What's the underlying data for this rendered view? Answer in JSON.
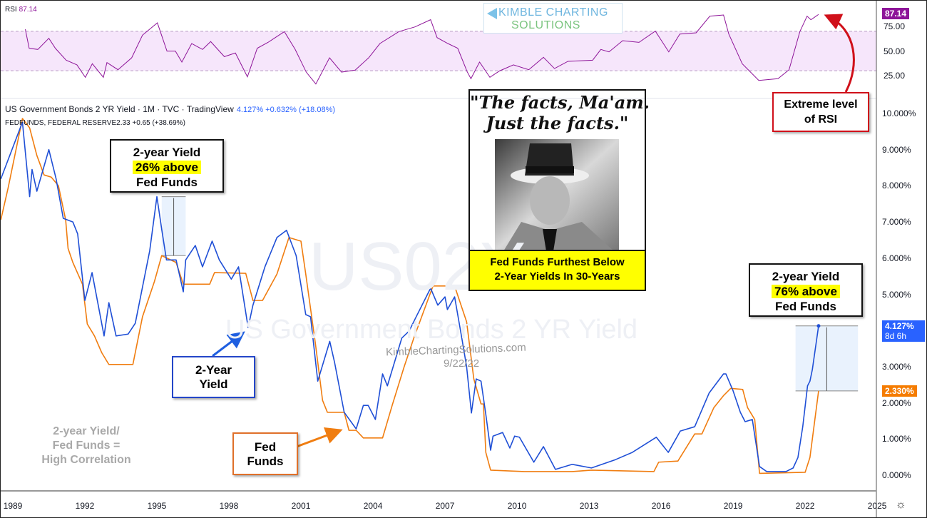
{
  "header": {
    "series1_title": "US Government Bonds 2 YR Yield · 1M · TVC · TradingView",
    "series1_values": "4.127% +0.632% (+18.08%)",
    "series2_title": "FEDFUNDS, FEDERAL RESERVE",
    "series2_values": "2.33 +0.65 (+38.69%)",
    "rsi_label": "RSI",
    "rsi_value": "87.14"
  },
  "logo": {
    "line1": "KIMBLE CHARTING",
    "line2": "SOLUTIONS"
  },
  "watermarks": {
    "symbol": "US02Y",
    "name": "US Government Bonds 2 YR Yield",
    "site": "KimbleChartingSolutions.com",
    "date": "9/22/22"
  },
  "annotations": {
    "box_1995": {
      "line1": "2-year Yield",
      "line2": "26% above",
      "line3": "Fed Funds"
    },
    "box_2022": {
      "line1": "2-year Yield",
      "line2": "76% above",
      "line3": "Fed Funds"
    },
    "two_year_label": {
      "line1": "2-Year",
      "line2": "Yield"
    },
    "fed_funds_label": {
      "line1": "Fed",
      "line2": "Funds"
    },
    "correlation": {
      "line1": "2-year Yield/",
      "line2": "Fed Funds =",
      "line3": "High Correlation"
    },
    "rsi_note": {
      "line1": "Extreme level",
      "line2": "of RSI"
    },
    "quote": {
      "line1": "\"The facts, Ma'am.",
      "line2": "Just the facts.\""
    },
    "caption": {
      "line1": "Fed Funds Furthest Below",
      "line2": "2-Year Yields In 30-Years"
    }
  },
  "badges": {
    "yield_value": "4.127%",
    "yield_countdown": "8d 6h",
    "fed_value": "2.330%",
    "rsi_value": "87.14"
  },
  "colors": {
    "yield": "#1f4fd6",
    "fed_funds": "#f07d10",
    "rsi": "#8e1599",
    "rsi_band": "#f6e6fb",
    "annotation_red": "#d0101a",
    "highlight": "#ffff00"
  },
  "chart_data": [
    {
      "type": "line",
      "title": "RSI",
      "ylim": [
        10,
        95
      ],
      "y_ticks": [
        "75.00",
        "50.00",
        "25.00"
      ],
      "bands": [
        30,
        70
      ],
      "series": [
        {
          "name": "RSI",
          "points": [
            [
              1989.52,
              72.1
            ],
            [
              1989.68,
              52.8
            ],
            [
              1990.04,
              51.6
            ],
            [
              1990.5,
              62.9
            ],
            [
              1990.77,
              52.8
            ],
            [
              1991.22,
              40.7
            ],
            [
              1991.67,
              35.9
            ],
            [
              1992.02,
              23.3
            ],
            [
              1992.31,
              37.1
            ],
            [
              1992.77,
              23.3
            ],
            [
              1992.92,
              38.3
            ],
            [
              1993.38,
              31.0
            ],
            [
              1993.95,
              43.1
            ],
            [
              1994.4,
              66.1
            ],
            [
              1995.02,
              78.6
            ],
            [
              1995.42,
              49.9
            ],
            [
              1995.77,
              49.9
            ],
            [
              1996.04,
              38.8
            ],
            [
              1996.45,
              57.6
            ],
            [
              1996.9,
              51.6
            ],
            [
              1997.24,
              59.6
            ],
            [
              1997.81,
              44.3
            ],
            [
              1998.27,
              48.0
            ],
            [
              1998.77,
              23.8
            ],
            [
              1999.18,
              52.8
            ],
            [
              1999.63,
              58.8
            ],
            [
              2000.31,
              69.7
            ],
            [
              2000.76,
              51.6
            ],
            [
              2001.22,
              28.6
            ],
            [
              2001.62,
              16.5
            ],
            [
              2002.19,
              43.1
            ],
            [
              2002.69,
              28.6
            ],
            [
              2003.26,
              30.6
            ],
            [
              2003.82,
              43.1
            ],
            [
              2004.29,
              57.6
            ],
            [
              2005.08,
              69.7
            ],
            [
              2005.75,
              74.5
            ],
            [
              2006.4,
              81.8
            ],
            [
              2006.67,
              63.6
            ],
            [
              2007.12,
              57.6
            ],
            [
              2007.53,
              52.8
            ],
            [
              2007.92,
              29.1
            ],
            [
              2008.08,
              21.9
            ],
            [
              2008.44,
              38.8
            ],
            [
              2008.87,
              23.3
            ],
            [
              2009.28,
              29.9
            ],
            [
              2009.85,
              35.9
            ],
            [
              2010.49,
              31.0
            ],
            [
              2011.1,
              43.6
            ],
            [
              2011.56,
              32.2
            ],
            [
              2012.12,
              39.5
            ],
            [
              2013.15,
              40.7
            ],
            [
              2013.49,
              51.6
            ],
            [
              2013.83,
              49.1
            ],
            [
              2014.4,
              60.5
            ],
            [
              2015.08,
              58.8
            ],
            [
              2015.76,
              70.2
            ],
            [
              2016.32,
              49.1
            ],
            [
              2016.78,
              67.2
            ],
            [
              2017.46,
              68.5
            ],
            [
              2018.03,
              85.4
            ],
            [
              2018.6,
              86.6
            ],
            [
              2018.82,
              67.2
            ],
            [
              2019.38,
              37.1
            ],
            [
              2020.07,
              20.1
            ],
            [
              2020.87,
              21.9
            ],
            [
              2021.33,
              31.0
            ],
            [
              2021.78,
              69.7
            ],
            [
              2022.08,
              85.4
            ],
            [
              2022.24,
              81.8
            ],
            [
              2022.56,
              87.14
            ]
          ]
        }
      ]
    },
    {
      "type": "line",
      "xlim": [
        1988.5,
        2025.3
      ],
      "ylim": [
        -0.3,
        10.5
      ],
      "x_ticks": [
        "1989",
        "1992",
        "1995",
        "1998",
        "2001",
        "2004",
        "2007",
        "2010",
        "2013",
        "2016",
        "2019",
        "2022",
        "2025"
      ],
      "y_ticks": [
        "10.000%",
        "9.000%",
        "8.000%",
        "7.000%",
        "6.000%",
        "5.000%",
        "3.000%",
        "2.000%",
        "1.000%",
        "0.000%"
      ],
      "series": [
        {
          "name": "US Government Bonds 2 YR Yield",
          "points": [
            [
              1988.5,
              8.19
            ],
            [
              1989.4,
              9.76
            ],
            [
              1989.7,
              7.7
            ],
            [
              1989.8,
              8.45
            ],
            [
              1990.0,
              7.85
            ],
            [
              1990.5,
              9.0
            ],
            [
              1990.8,
              8.2
            ],
            [
              1991.1,
              7.1
            ],
            [
              1991.5,
              7.0
            ],
            [
              1991.7,
              6.67
            ],
            [
              1992.0,
              4.83
            ],
            [
              1992.3,
              5.6
            ],
            [
              1992.8,
              3.85
            ],
            [
              1993.0,
              4.77
            ],
            [
              1993.3,
              3.85
            ],
            [
              1993.8,
              3.9
            ],
            [
              1994.1,
              4.2
            ],
            [
              1994.7,
              6.2
            ],
            [
              1995.0,
              7.7
            ],
            [
              1995.2,
              6.8
            ],
            [
              1995.4,
              5.95
            ],
            [
              1995.8,
              5.95
            ],
            [
              1996.1,
              5.07
            ],
            [
              1996.2,
              5.95
            ],
            [
              1996.6,
              6.35
            ],
            [
              1996.9,
              5.76
            ],
            [
              1997.3,
              6.47
            ],
            [
              1997.6,
              5.95
            ],
            [
              1998.1,
              5.42
            ],
            [
              1998.4,
              5.76
            ],
            [
              1998.8,
              4.08
            ],
            [
              1999.0,
              4.7
            ],
            [
              1999.5,
              5.76
            ],
            [
              2000.0,
              6.57
            ],
            [
              2000.4,
              6.77
            ],
            [
              2000.8,
              6.07
            ],
            [
              2001.2,
              4.44
            ],
            [
              2001.4,
              4.38
            ],
            [
              2001.7,
              2.6
            ],
            [
              2002.2,
              3.7
            ],
            [
              2002.4,
              3.12
            ],
            [
              2002.8,
              1.74
            ],
            [
              2003.3,
              1.28
            ],
            [
              2003.6,
              1.93
            ],
            [
              2003.8,
              1.93
            ],
            [
              2004.1,
              1.54
            ],
            [
              2004.4,
              2.8
            ],
            [
              2004.6,
              2.47
            ],
            [
              2005.2,
              3.79
            ],
            [
              2005.5,
              3.98
            ],
            [
              2005.8,
              4.38
            ],
            [
              2006.4,
              5.17
            ],
            [
              2006.7,
              4.7
            ],
            [
              2007.0,
              4.93
            ],
            [
              2007.1,
              4.58
            ],
            [
              2007.4,
              4.93
            ],
            [
              2007.7,
              3.79
            ],
            [
              2007.9,
              3.0
            ],
            [
              2008.1,
              1.72
            ],
            [
              2008.3,
              2.66
            ],
            [
              2008.5,
              2.6
            ],
            [
              2008.7,
              1.68
            ],
            [
              2008.9,
              0.69
            ],
            [
              2009.0,
              1.08
            ],
            [
              2009.4,
              1.18
            ],
            [
              2009.7,
              0.75
            ],
            [
              2009.9,
              1.08
            ],
            [
              2010.1,
              1.05
            ],
            [
              2010.7,
              0.36
            ],
            [
              2011.1,
              0.79
            ],
            [
              2011.6,
              0.16
            ],
            [
              2012.3,
              0.3
            ],
            [
              2013.1,
              0.2
            ],
            [
              2014.1,
              0.43
            ],
            [
              2014.8,
              0.63
            ],
            [
              2015.8,
              1.05
            ],
            [
              2016.3,
              0.63
            ],
            [
              2016.8,
              1.22
            ],
            [
              2017.4,
              1.34
            ],
            [
              2018.0,
              2.27
            ],
            [
              2018.6,
              2.8
            ],
            [
              2018.7,
              2.8
            ],
            [
              2019.0,
              2.33
            ],
            [
              2019.3,
              1.74
            ],
            [
              2019.5,
              1.48
            ],
            [
              2019.8,
              1.54
            ],
            [
              2020.1,
              0.24
            ],
            [
              2020.4,
              0.1
            ],
            [
              2021.2,
              0.1
            ],
            [
              2021.5,
              0.2
            ],
            [
              2021.7,
              0.49
            ],
            [
              2021.9,
              1.34
            ],
            [
              2022.1,
              2.47
            ],
            [
              2022.2,
              2.6
            ],
            [
              2022.3,
              2.92
            ],
            [
              2022.56,
              4.127
            ]
          ]
        },
        {
          "name": "FEDFUNDS, FEDERAL RESERVE",
          "points": [
            [
              1988.5,
              7.06
            ],
            [
              1988.8,
              7.93
            ],
            [
              1989.4,
              9.86
            ],
            [
              1989.7,
              9.6
            ],
            [
              1990.0,
              8.84
            ],
            [
              1990.3,
              8.3
            ],
            [
              1990.6,
              8.24
            ],
            [
              1990.9,
              8.0
            ],
            [
              1991.2,
              7.06
            ],
            [
              1991.3,
              6.27
            ],
            [
              1991.5,
              5.88
            ],
            [
              1991.9,
              5.28
            ],
            [
              1992.1,
              4.18
            ],
            [
              1992.4,
              3.85
            ],
            [
              1992.7,
              3.39
            ],
            [
              1993.0,
              3.06
            ],
            [
              1994.0,
              3.06
            ],
            [
              1994.4,
              4.38
            ],
            [
              1994.9,
              5.36
            ],
            [
              1995.2,
              6.07
            ],
            [
              1995.8,
              5.88
            ],
            [
              1996.1,
              5.28
            ],
            [
              1997.2,
              5.28
            ],
            [
              1997.4,
              5.6
            ],
            [
              1998.7,
              5.58
            ],
            [
              1999.0,
              4.83
            ],
            [
              1999.4,
              4.83
            ],
            [
              2000.0,
              5.56
            ],
            [
              2000.5,
              6.57
            ],
            [
              2001.0,
              6.47
            ],
            [
              2001.2,
              5.56
            ],
            [
              2001.6,
              3.65
            ],
            [
              2001.9,
              2.07
            ],
            [
              2002.1,
              1.74
            ],
            [
              2002.8,
              1.74
            ],
            [
              2003.0,
              1.24
            ],
            [
              2003.3,
              1.24
            ],
            [
              2003.6,
              1.03
            ],
            [
              2004.4,
              1.03
            ],
            [
              2004.8,
              1.93
            ],
            [
              2005.3,
              3.0
            ],
            [
              2005.7,
              3.79
            ],
            [
              2006.5,
              5.23
            ],
            [
              2007.4,
              5.23
            ],
            [
              2007.9,
              4.24
            ],
            [
              2008.2,
              2.66
            ],
            [
              2008.5,
              1.97
            ],
            [
              2008.6,
              1.97
            ],
            [
              2008.7,
              0.63
            ],
            [
              2008.9,
              0.14
            ],
            [
              2010.3,
              0.1
            ],
            [
              2012.3,
              0.1
            ],
            [
              2013.1,
              0.14
            ],
            [
              2015.7,
              0.1
            ],
            [
              2015.9,
              0.36
            ],
            [
              2016.7,
              0.39
            ],
            [
              2017.4,
              1.14
            ],
            [
              2017.7,
              1.14
            ],
            [
              2018.2,
              1.87
            ],
            [
              2018.6,
              2.2
            ],
            [
              2018.9,
              2.4
            ],
            [
              2019.4,
              2.37
            ],
            [
              2019.6,
              1.87
            ],
            [
              2019.9,
              1.54
            ],
            [
              2020.1,
              0.05
            ],
            [
              2022.0,
              0.08
            ],
            [
              2022.2,
              0.49
            ],
            [
              2022.56,
              2.33
            ]
          ]
        }
      ],
      "measure_ranges": [
        {
          "from_year": 1995.2,
          "to_year": 1996.2,
          "low": 6.07,
          "high": 7.7
        },
        {
          "from_year": 2021.6,
          "to_year": 2024.2,
          "low": 2.33,
          "high": 4.127
        }
      ]
    }
  ]
}
